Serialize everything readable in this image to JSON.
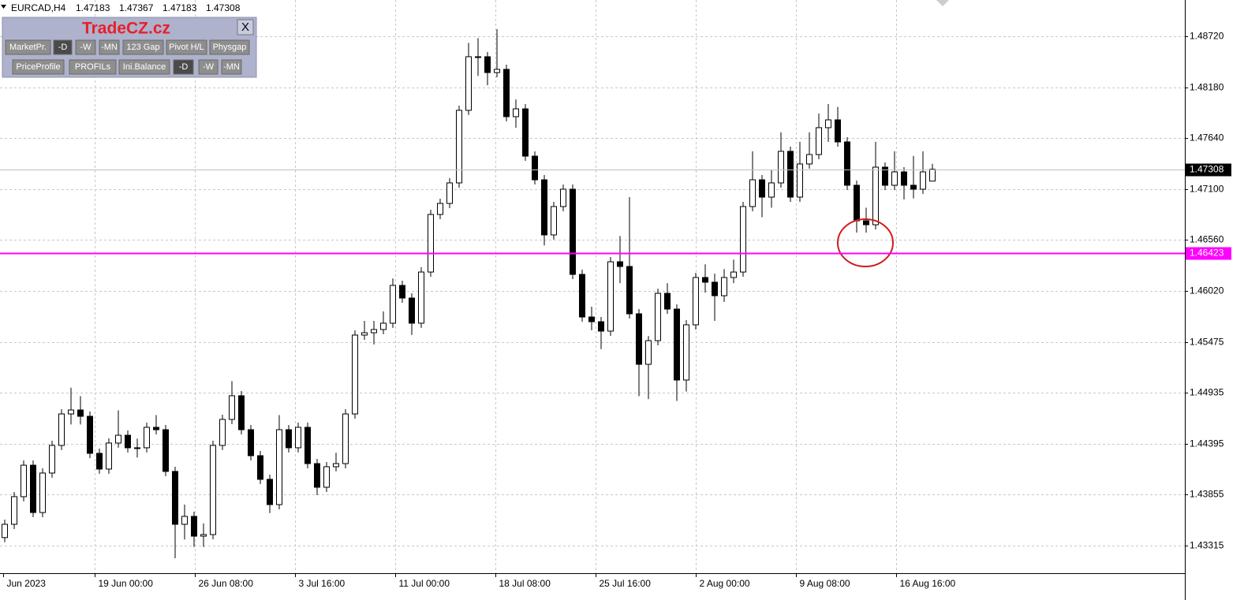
{
  "chart_data": {
    "type": "candlestick",
    "symbol": "EURCAD,H4",
    "x": [
      1.5,
      4.5,
      7.5,
      10.5,
      13.5,
      16.5,
      19.5,
      22.5,
      25.5,
      28.5,
      31.5,
      34.5,
      37.5,
      40.5,
      43.5,
      46.5,
      49.5,
      52.5,
      55.5,
      58.5,
      61.5,
      64.5,
      67.5,
      70.5,
      73.5,
      76.5,
      79.5,
      82.5,
      85.5,
      88.5,
      91.5,
      94.5,
      97.5,
      100.5,
      103.5,
      106.5,
      109.5,
      112.5,
      115.5,
      118.5,
      121.5,
      124.5,
      127.5,
      130.5,
      133.5,
      136.5,
      139.5,
      142.5,
      145.5,
      148.5,
      151.5,
      154.5,
      157.5,
      160.5,
      163.5,
      166.5,
      169.5,
      172.5,
      175.5,
      178.5,
      181.5,
      184.5,
      187.5,
      190.5,
      193.5,
      196.5,
      199.5,
      202.5,
      205.5,
      208.5,
      211.5,
      214.5,
      217.5,
      220.5,
      223.5,
      226.5,
      229.5,
      232.5,
      235.5,
      238.5,
      241.5,
      244.5,
      247.5,
      250.5,
      253.5,
      256.5,
      259.5,
      262.5,
      265.5,
      268.5,
      271.5,
      274.5,
      277.5,
      280.5,
      283.5,
      286.5,
      289.5,
      292.5,
      295.5
    ],
    "open": [
      1.434,
      1.43541,
      1.43834,
      1.44168,
      1.43666,
      1.44085,
      1.44378,
      1.44712,
      1.44754,
      1.44687,
      1.44294,
      1.44127,
      1.44403,
      1.44486,
      1.44353,
      1.44353,
      1.4457,
      1.44545,
      1.44102,
      1.43541,
      1.43625,
      1.43415,
      1.43432,
      1.44378,
      1.44654,
      1.44905,
      1.44545,
      1.44269,
      1.44018,
      1.4375,
      1.44545,
      1.44353,
      1.4457,
      1.44185,
      1.43934,
      1.44152,
      1.44185,
      1.44712,
      1.45549,
      1.45574,
      1.45608,
      1.45675,
      1.46076,
      1.45942,
      1.45675,
      1.46218,
      1.46829,
      1.46946,
      1.47164,
      1.47934,
      1.48503,
      1.48503,
      1.48335,
      1.48369,
      1.47867,
      1.4795,
      1.47448,
      1.47197,
      1.46612,
      1.46913,
      1.47097,
      1.46193,
      1.45741,
      1.45691,
      1.45591,
      1.46327,
      1.46277,
      1.45775,
      1.45239,
      1.4549,
      1.45992,
      1.45825,
      1.45072,
      1.45658,
      1.4616,
      1.4611,
      1.45967,
      1.4616,
      1.46218,
      1.46913,
      1.47197,
      1.47013,
      1.47164,
      1.47499,
      1.47013,
      1.47365,
      1.47465,
      1.4775,
      1.47833,
      1.47599,
      1.47139,
      1.46762,
      1.4672,
      1.47331,
      1.47139,
      1.47281,
      1.47139,
      1.47097,
      1.47183
    ],
    "high": [
      1.43591,
      1.43884,
      1.44218,
      1.44218,
      1.44135,
      1.44428,
      1.44762,
      1.4499,
      1.449,
      1.44737,
      1.44344,
      1.44453,
      1.4475,
      1.44536,
      1.4445,
      1.4462,
      1.447,
      1.44595,
      1.44152,
      1.4375,
      1.43675,
      1.4355,
      1.44428,
      1.44704,
      1.4506,
      1.44955,
      1.44595,
      1.44319,
      1.44068,
      1.447,
      1.44595,
      1.4462,
      1.4462,
      1.44235,
      1.44202,
      1.443,
      1.44762,
      1.45599,
      1.457,
      1.457,
      1.458,
      1.4615,
      1.46126,
      1.45992,
      1.46268,
      1.46879,
      1.46996,
      1.47214,
      1.47984,
      1.4865,
      1.487,
      1.48553,
      1.48795,
      1.48419,
      1.4805,
      1.48,
      1.47498,
      1.47247,
      1.46963,
      1.47147,
      1.47147,
      1.46243,
      1.4585,
      1.45741,
      1.46377,
      1.466,
      1.47013,
      1.45825,
      1.4554,
      1.46042,
      1.461,
      1.45875,
      1.45708,
      1.4621,
      1.463,
      1.462,
      1.4625,
      1.4635,
      1.46963,
      1.475,
      1.47247,
      1.473,
      1.477,
      1.47549,
      1.476,
      1.477,
      1.479,
      1.48,
      1.4797,
      1.47649,
      1.47189,
      1.469,
      1.476,
      1.47381,
      1.475,
      1.47331,
      1.4745,
      1.475,
      1.47367
    ],
    "low": [
      1.4335,
      1.43491,
      1.43784,
      1.43616,
      1.43616,
      1.44035,
      1.44328,
      1.446,
      1.446,
      1.44244,
      1.44077,
      1.44077,
      1.44353,
      1.44303,
      1.4425,
      1.44303,
      1.44495,
      1.44052,
      1.43181,
      1.4338,
      1.433,
      1.433,
      1.43382,
      1.44328,
      1.44604,
      1.44495,
      1.44219,
      1.43968,
      1.4366,
      1.437,
      1.44303,
      1.44303,
      1.44135,
      1.4385,
      1.43884,
      1.44102,
      1.44135,
      1.44662,
      1.45499,
      1.4545,
      1.45558,
      1.45625,
      1.45892,
      1.4555,
      1.45625,
      1.46168,
      1.46779,
      1.46896,
      1.47114,
      1.47884,
      1.483,
      1.482,
      1.48285,
      1.47817,
      1.4775,
      1.47398,
      1.47147,
      1.465,
      1.46562,
      1.46863,
      1.46143,
      1.45691,
      1.456,
      1.454,
      1.45541,
      1.461,
      1.45725,
      1.449,
      1.4487,
      1.4544,
      1.45775,
      1.4485,
      1.4495,
      1.45608,
      1.46,
      1.457,
      1.459,
      1.461,
      1.46168,
      1.46863,
      1.468,
      1.469,
      1.47114,
      1.46963,
      1.46963,
      1.47315,
      1.47415,
      1.476,
      1.47549,
      1.47089,
      1.46637,
      1.46637,
      1.4667,
      1.47089,
      1.47089,
      1.46989,
      1.47,
      1.47047,
      1.47183
    ],
    "close": [
      1.43541,
      1.43834,
      1.44168,
      1.43666,
      1.44085,
      1.44378,
      1.44712,
      1.44754,
      1.44687,
      1.44294,
      1.44127,
      1.44403,
      1.44486,
      1.44353,
      1.44353,
      1.4457,
      1.44545,
      1.44102,
      1.43541,
      1.43625,
      1.43415,
      1.43432,
      1.44378,
      1.44654,
      1.44905,
      1.44545,
      1.44269,
      1.44018,
      1.4375,
      1.44545,
      1.44353,
      1.4457,
      1.44185,
      1.43934,
      1.44152,
      1.44185,
      1.44712,
      1.45549,
      1.45574,
      1.45608,
      1.45675,
      1.46076,
      1.45942,
      1.45675,
      1.46218,
      1.46829,
      1.46946,
      1.47164,
      1.47934,
      1.48503,
      1.48503,
      1.48335,
      1.48369,
      1.47867,
      1.4795,
      1.47448,
      1.47197,
      1.46612,
      1.46913,
      1.47097,
      1.46193,
      1.45741,
      1.45691,
      1.45591,
      1.46327,
      1.46277,
      1.45775,
      1.45239,
      1.4549,
      1.45992,
      1.45825,
      1.45072,
      1.45658,
      1.4616,
      1.4611,
      1.45967,
      1.4616,
      1.46218,
      1.46913,
      1.47197,
      1.47013,
      1.47164,
      1.47499,
      1.47013,
      1.47365,
      1.47465,
      1.4775,
      1.47833,
      1.47599,
      1.47139,
      1.46762,
      1.4672,
      1.47331,
      1.47139,
      1.47281,
      1.47139,
      1.47097,
      1.47281,
      1.47308
    ],
    "xlim": [
      0,
      375.5
    ],
    "ylim": [
      1.43022,
      1.49105
    ],
    "xticks": [
      {
        "value": 1,
        "label": "Jun 2023"
      },
      {
        "value": 30,
        "label": "19 Jun 00:00"
      },
      {
        "value": 61.75,
        "label": "26 Jun 08:00"
      },
      {
        "value": 93.5,
        "label": "3 Jul 16:00"
      },
      {
        "value": 125.25,
        "label": "11 Jul 00:00"
      },
      {
        "value": 157,
        "label": "18 Jul 08:00"
      },
      {
        "value": 188.75,
        "label": "25 Jul 16:00"
      },
      {
        "value": 220.5,
        "label": "2 Aug 00:00"
      },
      {
        "value": 252.25,
        "label": "9 Aug 08:00"
      },
      {
        "value": 284,
        "label": "16 Aug 16:00"
      }
    ],
    "yticks": [
      {
        "value": 1.4872,
        "label": "1.48720"
      },
      {
        "value": 1.4818,
        "label": "1.48180"
      },
      {
        "value": 1.4764,
        "label": "1.47640"
      },
      {
        "value": 1.471,
        "label": "1.47100"
      },
      {
        "value": 1.4656,
        "label": "1.46560"
      },
      {
        "value": 1.4602,
        "label": "1.46020"
      },
      1.45475,
      1.44935,
      1.44395,
      1.43855,
      1.43315
    ],
    "grid": true,
    "up_color": "#ffffff",
    "down_color": "#000000",
    "line_color": "#000000",
    "price_line_color": "#c0c0c0",
    "level_line": {
      "value": 1.46423,
      "color": "#ff00ff"
    }
  },
  "panel": {
    "brand": "TradeCZ.cz",
    "close": "X",
    "row1": [
      "MarketPr.",
      "-D",
      "-W",
      "-MN",
      "123 Gap",
      "Pivot H/L",
      "Physgap"
    ],
    "row2": [
      "PriceProfile",
      "PROFILs",
      "Ini.Balance",
      "-D",
      "-W",
      "-MN"
    ]
  }
}
